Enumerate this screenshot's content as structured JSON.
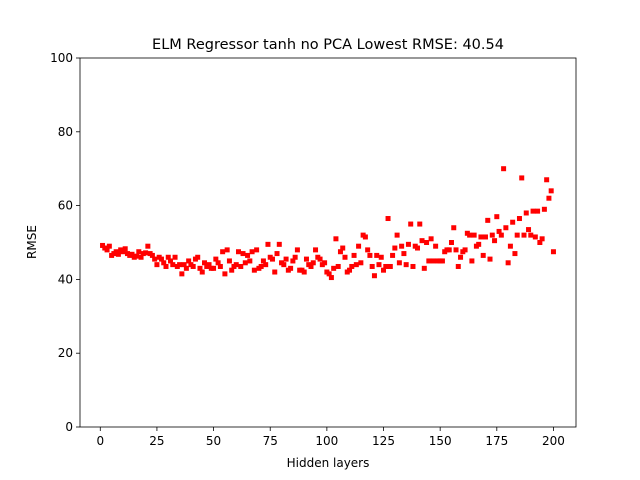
{
  "chart_data": {
    "type": "scatter",
    "title": "ELM Regressor tanh no PCA Lowest RMSE: 40.54",
    "x_label": "Hidden layers",
    "y_label": "RMSE",
    "color": "#ff0000",
    "marker": "square",
    "xlim": [
      -8.95,
      209.95
    ],
    "ylim": [
      0,
      100
    ],
    "xticks": [
      0,
      25,
      50,
      75,
      100,
      125,
      150,
      175,
      200
    ],
    "yticks": [
      0,
      20,
      40,
      60,
      80,
      100
    ],
    "x": [
      1,
      2,
      3,
      4,
      5,
      6,
      7,
      8,
      9,
      10,
      11,
      12,
      13,
      14,
      15,
      16,
      17,
      18,
      19,
      20,
      21,
      22,
      23,
      24,
      25,
      26,
      27,
      28,
      29,
      30,
      31,
      32,
      33,
      34,
      35,
      36,
      37,
      38,
      39,
      40,
      41,
      42,
      43,
      44,
      45,
      46,
      47,
      48,
      49,
      50,
      51,
      52,
      53,
      54,
      55,
      56,
      57,
      58,
      59,
      60,
      61,
      62,
      63,
      64,
      65,
      66,
      67,
      68,
      69,
      70,
      71,
      72,
      73,
      74,
      75,
      76,
      77,
      78,
      79,
      80,
      81,
      82,
      83,
      84,
      85,
      86,
      87,
      88,
      89,
      90,
      91,
      92,
      93,
      94,
      95,
      96,
      97,
      98,
      99,
      100,
      101,
      102,
      103,
      104,
      105,
      106,
      107,
      108,
      109,
      110,
      111,
      112,
      113,
      114,
      115,
      116,
      117,
      118,
      119,
      120,
      121,
      122,
      123,
      124,
      125,
      126,
      127,
      128,
      129,
      130,
      131,
      132,
      133,
      134,
      135,
      136,
      137,
      138,
      139,
      140,
      141,
      142,
      143,
      144,
      145,
      146,
      147,
      148,
      149,
      150,
      151,
      152,
      153,
      154,
      155,
      156,
      157,
      158,
      159,
      160,
      161,
      162,
      163,
      164,
      165,
      166,
      167,
      168,
      169,
      170,
      171,
      172,
      173,
      174,
      175,
      176,
      177,
      178,
      179,
      180,
      181,
      182,
      183,
      184,
      185,
      186,
      187,
      188,
      189,
      190,
      191,
      192,
      193,
      194,
      195,
      196,
      197,
      198,
      199,
      200
    ],
    "values": [
      49.2,
      48.5,
      48,
      49,
      46.5,
      47,
      47.5,
      46.8,
      48,
      47.5,
      48.3,
      47,
      46.5,
      46.8,
      46,
      46.3,
      47.5,
      46,
      47,
      47.2,
      49,
      47,
      46.5,
      45.5,
      44,
      46,
      45.5,
      44.5,
      43.5,
      46,
      45,
      44,
      46,
      43.5,
      44,
      41.5,
      44,
      43,
      45,
      44,
      43.5,
      45.5,
      46,
      43,
      42,
      44.5,
      43.5,
      44,
      43,
      43,
      45.5,
      44.5,
      43.5,
      47.5,
      41.5,
      48,
      45,
      42.5,
      43.5,
      44,
      47.5,
      43.5,
      47,
      44.5,
      46.5,
      45,
      47.5,
      42.5,
      48,
      43,
      43.5,
      45,
      44,
      49.5,
      46,
      45.5,
      42,
      47,
      49.5,
      44.5,
      44,
      45.5,
      42.5,
      43,
      45,
      46,
      48,
      42.5,
      42.5,
      42,
      45.5,
      44,
      43.5,
      44.5,
      48,
      46,
      45.5,
      44,
      44.5,
      42,
      41.5,
      40.5,
      43,
      51,
      43.5,
      47.5,
      48.5,
      46,
      42,
      42.5,
      43.5,
      46.5,
      44,
      49,
      44.5,
      52,
      51.5,
      48,
      46.5,
      43.5,
      41,
      46.5,
      44,
      46,
      42.5,
      43.5,
      56.5,
      43.5,
      46.5,
      48.5,
      52,
      44.5,
      49,
      47,
      44,
      49.5,
      55,
      43.5,
      49,
      48.5,
      55,
      50.5,
      43,
      50,
      45,
      51,
      45,
      49,
      45,
      45,
      45,
      47.5,
      48,
      48,
      50,
      54,
      48,
      43.5,
      46,
      47.5,
      48,
      52.5,
      52,
      45,
      52,
      49,
      49.5,
      51.5,
      46.5,
      51.5,
      56,
      45.5,
      52,
      50.5,
      57,
      53,
      52,
      70,
      54,
      44.5,
      49,
      55.5,
      47,
      52,
      56.5,
      67.5,
      52,
      58,
      53.5,
      52,
      58.5,
      51.5,
      58.5,
      50,
      51,
      59,
      67,
      62,
      64,
      47.5
    ]
  }
}
